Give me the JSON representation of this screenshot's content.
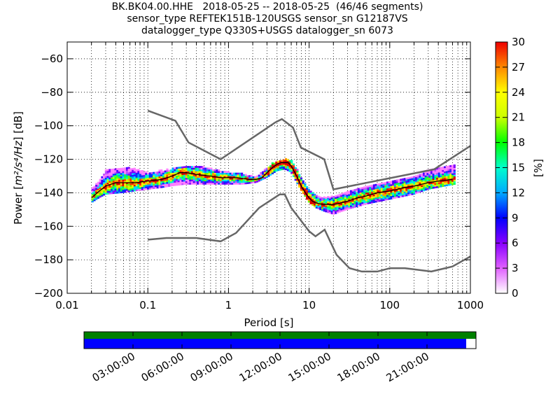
{
  "title_lines": [
    "BK.BK04.00.HHE   2018-05-25 -- 2018-05-25  (46/46 segments)",
    "sensor_type REFTEK151B-120USGS sensor_sn G12187VS",
    "datalogger_type Q330S+USGS datalogger_sn 6073"
  ],
  "colors": {
    "noise_model": "#666666",
    "mode_line": "#000000",
    "coverage_data": "#0000ff",
    "coverage_available": "#008000"
  },
  "chart_data": {
    "type": "heatmap",
    "xlabel": "Period [s]",
    "ylabel_prefix": "Power [",
    "ylabel_unit": "m²/s⁴/Hz",
    "ylabel_suffix": "] [dB]",
    "x_scale": "log",
    "xlim": [
      0.01,
      1000
    ],
    "ylim": [
      -200,
      -50
    ],
    "x_ticks": [
      {
        "value": 0.01,
        "label": "0.01"
      },
      {
        "value": 0.1,
        "label": "0.1"
      },
      {
        "value": 1,
        "label": "1"
      },
      {
        "value": 10,
        "label": "10"
      },
      {
        "value": 100,
        "label": "100"
      },
      {
        "value": 1000,
        "label": "1000"
      }
    ],
    "y_ticks": [
      {
        "value": -60,
        "label": "−60"
      },
      {
        "value": -80,
        "label": "−80"
      },
      {
        "value": -100,
        "label": "−100"
      },
      {
        "value": -120,
        "label": "−120"
      },
      {
        "value": -140,
        "label": "−140"
      },
      {
        "value": -160,
        "label": "−160"
      },
      {
        "value": -180,
        "label": "−180"
      },
      {
        "value": -200,
        "label": "−200"
      }
    ],
    "grid": true,
    "colorbar": {
      "label": "[%]",
      "min": 0,
      "max": 30,
      "ticks": [
        {
          "value": 0,
          "label": "0"
        },
        {
          "value": 3,
          "label": "3"
        },
        {
          "value": 6,
          "label": "6"
        },
        {
          "value": 9,
          "label": "9"
        },
        {
          "value": 12,
          "label": "12"
        },
        {
          "value": 15,
          "label": "15"
        },
        {
          "value": 18,
          "label": "18"
        },
        {
          "value": 21,
          "label": "21"
        },
        {
          "value": 24,
          "label": "24"
        },
        {
          "value": 27,
          "label": "27"
        },
        {
          "value": 30,
          "label": "30"
        }
      ]
    },
    "high_noise_model": [
      [
        0.1,
        -91
      ],
      [
        0.22,
        -97
      ],
      [
        0.32,
        -110
      ],
      [
        0.8,
        -120
      ],
      [
        3.8,
        -98
      ],
      [
        4.6,
        -96
      ],
      [
        6.3,
        -101
      ],
      [
        7.9,
        -113
      ],
      [
        15.4,
        -120
      ],
      [
        20,
        -138
      ],
      [
        354.8,
        -126
      ],
      [
        1000,
        -112
      ]
    ],
    "low_noise_model": [
      [
        0.1,
        -168
      ],
      [
        0.17,
        -167
      ],
      [
        0.4,
        -167
      ],
      [
        0.8,
        -169
      ],
      [
        1.24,
        -164
      ],
      [
        2.4,
        -149
      ],
      [
        4.3,
        -141
      ],
      [
        5,
        -141
      ],
      [
        6,
        -149
      ],
      [
        10,
        -163
      ],
      [
        12,
        -166
      ],
      [
        15.6,
        -162
      ],
      [
        21.9,
        -177
      ],
      [
        31.6,
        -185
      ],
      [
        45,
        -187
      ],
      [
        70,
        -187
      ],
      [
        101,
        -185
      ],
      [
        154,
        -185
      ],
      [
        328,
        -187
      ],
      [
        600,
        -184
      ],
      [
        1000,
        -178
      ]
    ],
    "mode_curve": [
      [
        0.02,
        -143
      ],
      [
        0.025,
        -139
      ],
      [
        0.03,
        -136
      ],
      [
        0.04,
        -134
      ],
      [
        0.05,
        -134
      ],
      [
        0.07,
        -134
      ],
      [
        0.1,
        -133
      ],
      [
        0.15,
        -132
      ],
      [
        0.2,
        -130
      ],
      [
        0.25,
        -128
      ],
      [
        0.3,
        -128
      ],
      [
        0.4,
        -129
      ],
      [
        0.6,
        -130
      ],
      [
        0.8,
        -131
      ],
      [
        1,
        -131
      ],
      [
        1.3,
        -131
      ],
      [
        1.8,
        -132
      ],
      [
        2.2,
        -132
      ],
      [
        2.6,
        -131
      ],
      [
        3,
        -128
      ],
      [
        3.5,
        -125
      ],
      [
        4,
        -123
      ],
      [
        4.5,
        -122
      ],
      [
        5,
        -122
      ],
      [
        5.5,
        -122
      ],
      [
        6,
        -124
      ],
      [
        7,
        -130
      ],
      [
        8,
        -136
      ],
      [
        9,
        -140
      ],
      [
        10,
        -143
      ],
      [
        11,
        -145
      ],
      [
        12,
        -146
      ],
      [
        15,
        -147
      ],
      [
        20,
        -147
      ],
      [
        25,
        -146
      ],
      [
        30,
        -145
      ],
      [
        40,
        -143
      ],
      [
        50,
        -142
      ],
      [
        70,
        -140
      ],
      [
        100,
        -139
      ],
      [
        150,
        -137
      ],
      [
        200,
        -136
      ],
      [
        300,
        -134
      ],
      [
        400,
        -133
      ],
      [
        600,
        -132
      ]
    ],
    "spread_upper": [
      [
        0.02,
        -138
      ],
      [
        0.025,
        -133
      ],
      [
        0.03,
        -127
      ],
      [
        0.05,
        -125
      ],
      [
        0.07,
        -126
      ],
      [
        0.1,
        -128
      ],
      [
        0.15,
        -127
      ],
      [
        0.2,
        -126
      ],
      [
        0.3,
        -124
      ],
      [
        0.5,
        -125
      ],
      [
        0.8,
        -127
      ],
      [
        1,
        -128
      ],
      [
        1.5,
        -129
      ],
      [
        2.2,
        -131
      ],
      [
        3,
        -125
      ],
      [
        4,
        -121
      ],
      [
        5,
        -120
      ],
      [
        6,
        -121
      ],
      [
        7,
        -126
      ],
      [
        8,
        -131
      ],
      [
        10,
        -138
      ],
      [
        12,
        -141
      ],
      [
        15,
        -143
      ],
      [
        20,
        -142
      ],
      [
        30,
        -140
      ],
      [
        50,
        -136
      ],
      [
        100,
        -133
      ],
      [
        200,
        -130
      ],
      [
        300,
        -127
      ],
      [
        500,
        -124
      ],
      [
        650,
        -124
      ]
    ],
    "spread_lower": [
      [
        0.02,
        -146
      ],
      [
        0.025,
        -143
      ],
      [
        0.03,
        -141
      ],
      [
        0.05,
        -140
      ],
      [
        0.07,
        -139
      ],
      [
        0.1,
        -138
      ],
      [
        0.15,
        -137
      ],
      [
        0.2,
        -136
      ],
      [
        0.3,
        -135
      ],
      [
        0.5,
        -135
      ],
      [
        0.8,
        -135
      ],
      [
        1,
        -135
      ],
      [
        1.5,
        -135
      ],
      [
        2.2,
        -134
      ],
      [
        3,
        -131
      ],
      [
        4,
        -127
      ],
      [
        5,
        -126
      ],
      [
        6,
        -128
      ],
      [
        7,
        -134
      ],
      [
        8,
        -139
      ],
      [
        10,
        -146
      ],
      [
        12,
        -149
      ],
      [
        15,
        -151
      ],
      [
        20,
        -153
      ],
      [
        30,
        -150
      ],
      [
        50,
        -147
      ],
      [
        100,
        -144
      ],
      [
        200,
        -141
      ],
      [
        300,
        -138
      ],
      [
        500,
        -136
      ],
      [
        650,
        -135
      ]
    ],
    "time_axis": {
      "tick_labels": [
        "03:00:00",
        "06:00:00",
        "09:00:00",
        "12:00:00",
        "15:00:00",
        "18:00:00",
        "21:00:00"
      ],
      "tick_hours": [
        3,
        6,
        9,
        12,
        15,
        18,
        21
      ],
      "range_hours": [
        0,
        24
      ],
      "data_coverage_end_hours": 23.4
    }
  }
}
